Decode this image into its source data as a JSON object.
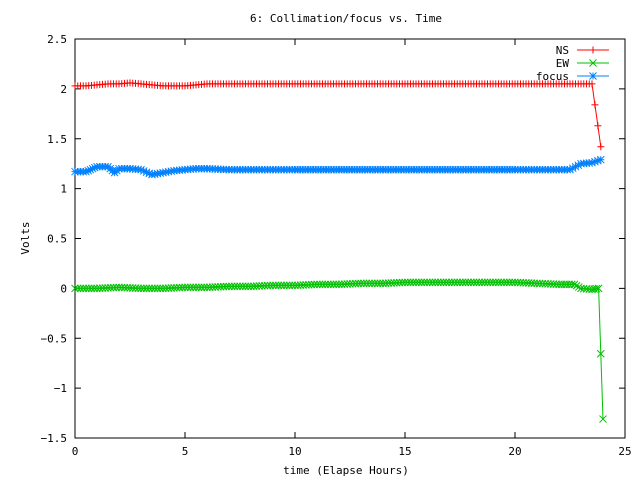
{
  "chart_data": {
    "type": "line",
    "title": "6: Collimation/focus vs. Time",
    "xlabel": "time (Elapse Hours)",
    "ylabel": "Volts",
    "xlim": [
      0,
      25
    ],
    "ylim": [
      -1.5,
      2.5
    ],
    "xticks": [
      {
        "value": 0,
        "label": "0"
      },
      {
        "value": 5,
        "label": "5"
      },
      {
        "value": 10,
        "label": "10"
      },
      {
        "value": 15,
        "label": "15"
      },
      {
        "value": 20,
        "label": "20"
      },
      {
        "value": 25,
        "label": "25"
      }
    ],
    "yticks": [
      {
        "value": 2.5,
        "label": "2.5"
      },
      {
        "value": 2,
        "label": "2"
      },
      {
        "value": 1.5,
        "label": "1.5"
      },
      {
        "value": 1,
        "label": "1"
      },
      {
        "value": 0.5,
        "label": "0.5"
      },
      {
        "value": 0,
        "label": "0"
      },
      {
        "value": -0.5,
        "label": "−0.5"
      },
      {
        "value": -1,
        "label": "−1"
      },
      {
        "value": -1.5,
        "label": "−1.5"
      }
    ],
    "grid": false,
    "legend_position": "top-right",
    "series": [
      {
        "name": "NS",
        "color": "#ff0000",
        "marker": "plus",
        "x": [
          0,
          0.5,
          1,
          1.5,
          2,
          2.5,
          3,
          3.5,
          4,
          4.5,
          5,
          5.5,
          6,
          7,
          8,
          9,
          10,
          11,
          12,
          13,
          14,
          15,
          16,
          17,
          18,
          19,
          20,
          21,
          22,
          23,
          23.5,
          23.9
        ],
        "values": [
          2.03,
          2.03,
          2.04,
          2.05,
          2.05,
          2.06,
          2.05,
          2.04,
          2.03,
          2.03,
          2.03,
          2.04,
          2.05,
          2.05,
          2.05,
          2.05,
          2.05,
          2.05,
          2.05,
          2.05,
          2.05,
          2.05,
          2.05,
          2.05,
          2.05,
          2.05,
          2.05,
          2.05,
          2.05,
          2.05,
          2.05,
          1.42
        ]
      },
      {
        "name": "EW",
        "color": "#00c000",
        "marker": "cross",
        "x": [
          0,
          1,
          2,
          3,
          4,
          5,
          6,
          7,
          8,
          9,
          10,
          11,
          12,
          13,
          14,
          15,
          16,
          17,
          18,
          19,
          20,
          21,
          22,
          22.7,
          23,
          23.5,
          23.8,
          24
        ],
        "values": [
          0,
          0,
          0.01,
          0,
          0,
          0.01,
          0.01,
          0.02,
          0.02,
          0.03,
          0.03,
          0.04,
          0.04,
          0.05,
          0.05,
          0.06,
          0.06,
          0.06,
          0.06,
          0.06,
          0.06,
          0.05,
          0.04,
          0.04,
          0,
          -0.01,
          0,
          -1.31
        ]
      },
      {
        "name": "focus",
        "color": "#0080ff",
        "marker": "star",
        "x": [
          0,
          0.5,
          0.8,
          1,
          1.5,
          1.8,
          2,
          2.5,
          3,
          3.5,
          4,
          4.5,
          5,
          5.5,
          6,
          7,
          8,
          9,
          10,
          12,
          14,
          16,
          18,
          20,
          21,
          22,
          22.5,
          23,
          23.5,
          23.9
        ],
        "values": [
          1.17,
          1.17,
          1.2,
          1.22,
          1.22,
          1.16,
          1.2,
          1.2,
          1.19,
          1.14,
          1.16,
          1.18,
          1.19,
          1.2,
          1.2,
          1.19,
          1.19,
          1.19,
          1.19,
          1.19,
          1.19,
          1.19,
          1.19,
          1.19,
          1.19,
          1.19,
          1.19,
          1.25,
          1.26,
          1.29
        ]
      }
    ]
  }
}
